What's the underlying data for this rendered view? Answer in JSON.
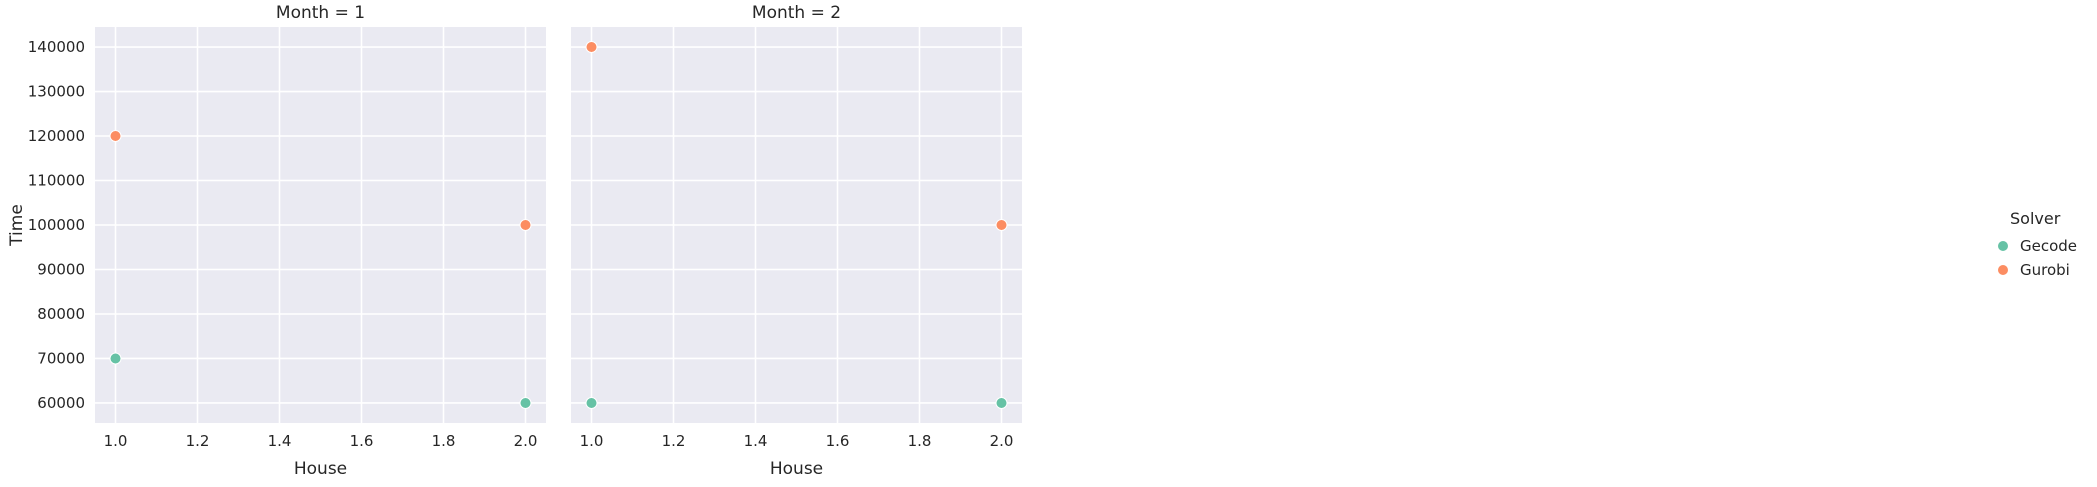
{
  "chart_data": {
    "type": "scatter",
    "facet_variable": "Month",
    "facets": [
      {
        "title": "Month = 1",
        "series": [
          {
            "name": "Gecode",
            "points": [
              {
                "x": 1.0,
                "y": 70000
              },
              {
                "x": 2.0,
                "y": 60000
              }
            ]
          },
          {
            "name": "Gurobi",
            "points": [
              {
                "x": 1.0,
                "y": 120000
              },
              {
                "x": 2.0,
                "y": 100000
              }
            ]
          }
        ]
      },
      {
        "title": "Month = 2",
        "series": [
          {
            "name": "Gecode",
            "points": [
              {
                "x": 1.0,
                "y": 60000
              },
              {
                "x": 2.0,
                "y": 60000
              }
            ]
          },
          {
            "name": "Gurobi",
            "points": [
              {
                "x": 1.0,
                "y": 140000
              },
              {
                "x": 2.0,
                "y": 100000
              }
            ]
          }
        ]
      }
    ],
    "xlabel": "House",
    "ylabel": "Time",
    "xlim": [
      0.95,
      2.05
    ],
    "ylim": [
      55500,
      144500
    ],
    "x_ticks": [
      "1.0",
      "1.2",
      "1.4",
      "1.6",
      "1.8",
      "2.0"
    ],
    "x_tick_values": [
      1.0,
      1.2,
      1.4,
      1.6,
      1.8,
      2.0
    ],
    "y_ticks": [
      "60000",
      "70000",
      "80000",
      "90000",
      "100000",
      "110000",
      "120000",
      "130000",
      "140000"
    ],
    "y_tick_values": [
      60000,
      70000,
      80000,
      90000,
      100000,
      110000,
      120000,
      130000,
      140000
    ],
    "grid": true,
    "shared_y": true,
    "legend": {
      "title": "Solver",
      "placement": "right",
      "entries": [
        {
          "label": "Gecode",
          "color": "#66c2a5"
        },
        {
          "label": "Gurobi",
          "color": "#fc8d62"
        }
      ]
    },
    "colors": {
      "panel_background": "#eaeaf2",
      "grid": "#ffffff",
      "text": "#262626"
    }
  }
}
